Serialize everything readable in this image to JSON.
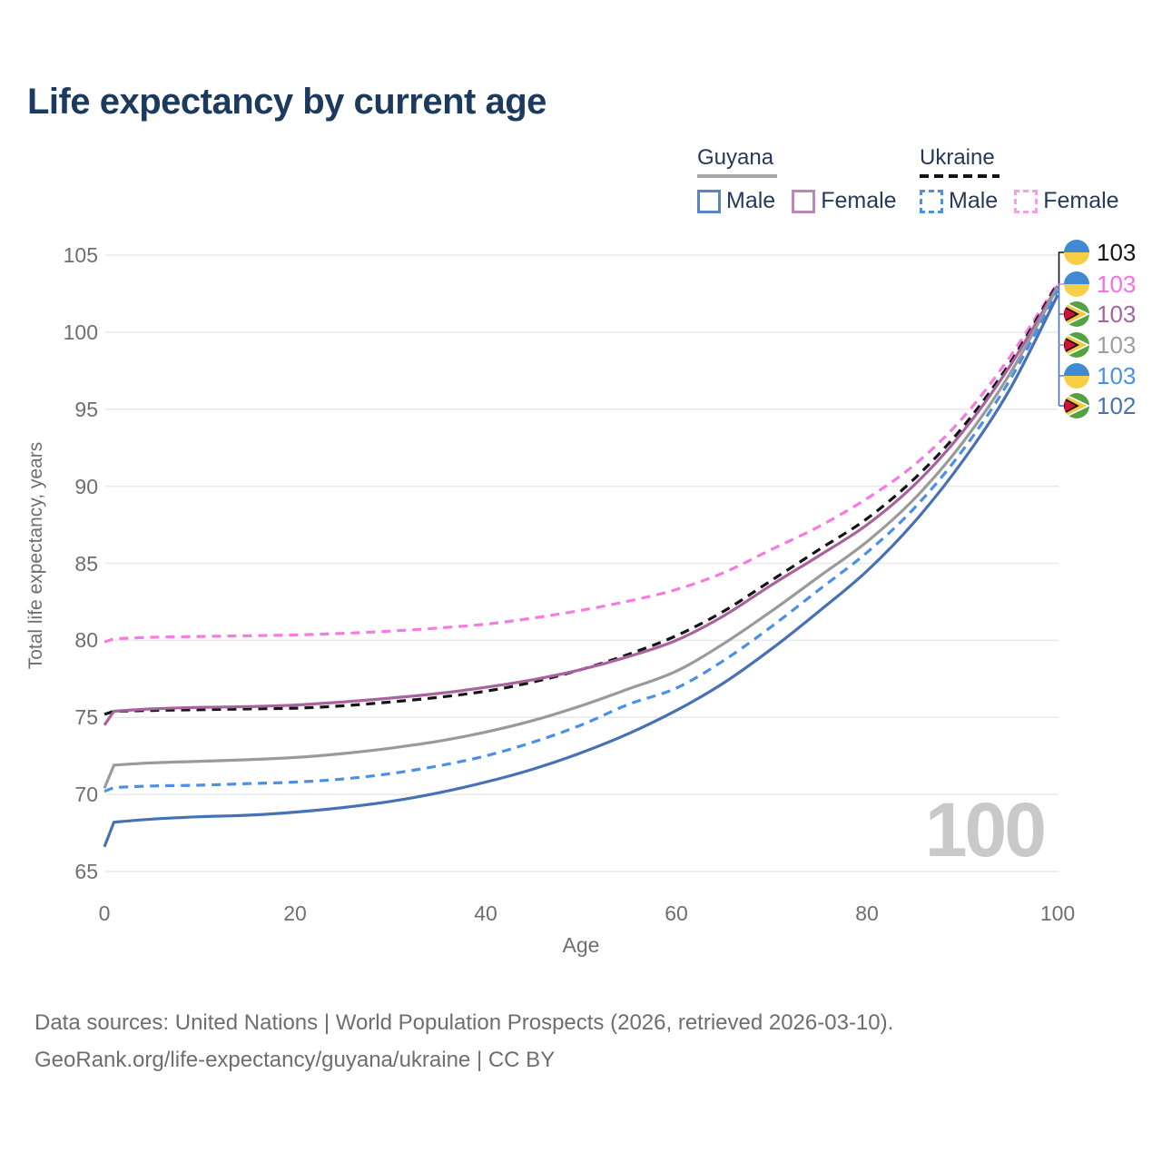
{
  "title": "Life expectancy by current age",
  "legend": {
    "groups": [
      {
        "name": "Guyana",
        "line_style": "solid",
        "underline_color": "#a6a6a6",
        "items": [
          {
            "label": "Male",
            "color": "#5b84c4",
            "dashed": false
          },
          {
            "label": "Female",
            "color": "#bf86b8",
            "dashed": false
          }
        ]
      },
      {
        "name": "Ukraine",
        "line_style": "dashed",
        "underline_color": "#141414",
        "items": [
          {
            "label": "Male",
            "color": "#4a90e8",
            "dashed": true
          },
          {
            "label": "Female",
            "color": "#fb9ce9",
            "dashed": true
          }
        ]
      }
    ]
  },
  "y_axis": {
    "label": "Total life expectancy, years",
    "ticks": [
      65,
      70,
      75,
      80,
      85,
      90,
      95,
      100,
      105
    ],
    "range": [
      65,
      105
    ]
  },
  "x_axis": {
    "label": "Age",
    "ticks": [
      0,
      20,
      40,
      60,
      80,
      100
    ],
    "range": [
      0,
      100
    ]
  },
  "watermark": "100",
  "chart_data": {
    "type": "line",
    "title": "Life expectancy by current age",
    "xlabel": "Age",
    "ylabel": "Total life expectancy, years",
    "xlim": [
      0,
      100
    ],
    "ylim": [
      65,
      105
    ],
    "grid": "horizontal",
    "legend_position": "top-right",
    "series": [
      {
        "name": "Ukraine Female",
        "country": "Ukraine",
        "sex": "Female",
        "color": "#f879e1",
        "dash": true,
        "points": [
          [
            0,
            79.9
          ],
          [
            1,
            80.1
          ],
          [
            5,
            80.2
          ],
          [
            10,
            80.25
          ],
          [
            15,
            80.3
          ],
          [
            20,
            80.35
          ],
          [
            25,
            80.45
          ],
          [
            30,
            80.6
          ],
          [
            35,
            80.8
          ],
          [
            40,
            81.05
          ],
          [
            45,
            81.45
          ],
          [
            50,
            81.95
          ],
          [
            55,
            82.55
          ],
          [
            60,
            83.3
          ],
          [
            65,
            84.4
          ],
          [
            70,
            85.9
          ],
          [
            75,
            87.4
          ],
          [
            80,
            89.2
          ],
          [
            85,
            91.4
          ],
          [
            90,
            94.4
          ],
          [
            95,
            98.4
          ],
          [
            100,
            103.2
          ]
        ]
      },
      {
        "name": "Ukraine Both sexes",
        "country": "Ukraine",
        "sex": "Both",
        "color": "#141414",
        "dash": true,
        "points": [
          [
            0,
            75.2
          ],
          [
            1,
            75.4
          ],
          [
            5,
            75.45
          ],
          [
            10,
            75.5
          ],
          [
            15,
            75.55
          ],
          [
            20,
            75.6
          ],
          [
            25,
            75.75
          ],
          [
            30,
            76.0
          ],
          [
            35,
            76.3
          ],
          [
            40,
            76.7
          ],
          [
            45,
            77.3
          ],
          [
            50,
            78.1
          ],
          [
            55,
            79.1
          ],
          [
            60,
            80.3
          ],
          [
            65,
            81.9
          ],
          [
            70,
            83.9
          ],
          [
            75,
            85.9
          ],
          [
            80,
            87.9
          ],
          [
            85,
            90.5
          ],
          [
            90,
            93.8
          ],
          [
            95,
            98.0
          ],
          [
            100,
            103.15
          ]
        ]
      },
      {
        "name": "Guyana Female",
        "country": "Guyana",
        "sex": "Female",
        "color": "#a8639f",
        "dash": false,
        "points": [
          [
            0,
            74.5
          ],
          [
            1,
            75.4
          ],
          [
            5,
            75.55
          ],
          [
            10,
            75.65
          ],
          [
            15,
            75.7
          ],
          [
            20,
            75.8
          ],
          [
            25,
            76.0
          ],
          [
            30,
            76.25
          ],
          [
            35,
            76.55
          ],
          [
            40,
            76.95
          ],
          [
            45,
            77.45
          ],
          [
            50,
            78.1
          ],
          [
            55,
            78.95
          ],
          [
            60,
            80.0
          ],
          [
            65,
            81.6
          ],
          [
            70,
            83.6
          ],
          [
            75,
            85.5
          ],
          [
            80,
            87.5
          ],
          [
            85,
            90.1
          ],
          [
            90,
            93.5
          ],
          [
            95,
            97.8
          ],
          [
            100,
            103.0
          ]
        ]
      },
      {
        "name": "Guyana Both sexes",
        "country": "Guyana",
        "sex": "Both",
        "color": "#9a9a9a",
        "dash": false,
        "points": [
          [
            0,
            70.4
          ],
          [
            1,
            71.9
          ],
          [
            5,
            72.05
          ],
          [
            10,
            72.15
          ],
          [
            15,
            72.25
          ],
          [
            20,
            72.4
          ],
          [
            25,
            72.65
          ],
          [
            30,
            73.0
          ],
          [
            35,
            73.45
          ],
          [
            40,
            74.05
          ],
          [
            45,
            74.8
          ],
          [
            50,
            75.75
          ],
          [
            55,
            76.85
          ],
          [
            60,
            78.0
          ],
          [
            65,
            79.8
          ],
          [
            70,
            81.9
          ],
          [
            75,
            84.15
          ],
          [
            80,
            86.4
          ],
          [
            85,
            89.2
          ],
          [
            90,
            92.8
          ],
          [
            95,
            97.3
          ],
          [
            100,
            102.9
          ]
        ]
      },
      {
        "name": "Ukraine Male",
        "country": "Ukraine",
        "sex": "Male",
        "color": "#4a90e8",
        "dash": true,
        "points": [
          [
            0,
            70.2
          ],
          [
            1,
            70.45
          ],
          [
            5,
            70.55
          ],
          [
            10,
            70.6
          ],
          [
            15,
            70.7
          ],
          [
            20,
            70.8
          ],
          [
            25,
            71.0
          ],
          [
            30,
            71.35
          ],
          [
            35,
            71.85
          ],
          [
            40,
            72.5
          ],
          [
            45,
            73.4
          ],
          [
            50,
            74.5
          ],
          [
            55,
            75.85
          ],
          [
            60,
            76.9
          ],
          [
            65,
            78.7
          ],
          [
            70,
            80.9
          ],
          [
            75,
            83.3
          ],
          [
            80,
            85.7
          ],
          [
            85,
            88.6
          ],
          [
            90,
            92.3
          ],
          [
            95,
            96.9
          ],
          [
            100,
            102.7
          ]
        ]
      },
      {
        "name": "Guyana Male",
        "country": "Guyana",
        "sex": "Male",
        "color": "#4671b5",
        "dash": false,
        "points": [
          [
            0,
            66.6
          ],
          [
            1,
            68.2
          ],
          [
            5,
            68.4
          ],
          [
            10,
            68.55
          ],
          [
            15,
            68.65
          ],
          [
            20,
            68.85
          ],
          [
            25,
            69.15
          ],
          [
            30,
            69.55
          ],
          [
            35,
            70.1
          ],
          [
            40,
            70.8
          ],
          [
            45,
            71.65
          ],
          [
            50,
            72.7
          ],
          [
            55,
            73.95
          ],
          [
            60,
            75.45
          ],
          [
            65,
            77.25
          ],
          [
            70,
            79.45
          ],
          [
            75,
            81.9
          ],
          [
            80,
            84.5
          ],
          [
            85,
            87.7
          ],
          [
            90,
            91.6
          ],
          [
            95,
            96.3
          ],
          [
            100,
            102.4
          ]
        ]
      }
    ]
  },
  "end_labels": [
    {
      "flag": "ukraine",
      "value": "103",
      "color": "#141414"
    },
    {
      "flag": "ukraine",
      "value": "103",
      "color": "#fb6ee2"
    },
    {
      "flag": "guyana",
      "value": "103",
      "color": "#a8639f"
    },
    {
      "flag": "guyana",
      "value": "103",
      "color": "#9e9e9e"
    },
    {
      "flag": "ukraine",
      "value": "103",
      "color": "#4a90e8"
    },
    {
      "flag": "guyana",
      "value": "102",
      "color": "#4671b5"
    }
  ],
  "footer": {
    "line1": "Data sources: United Nations | World Population Prospects (2026, retrieved 2026-03-10).",
    "line2": "GeoRank.org/life-expectancy/guyana/ukraine | CC BY"
  }
}
